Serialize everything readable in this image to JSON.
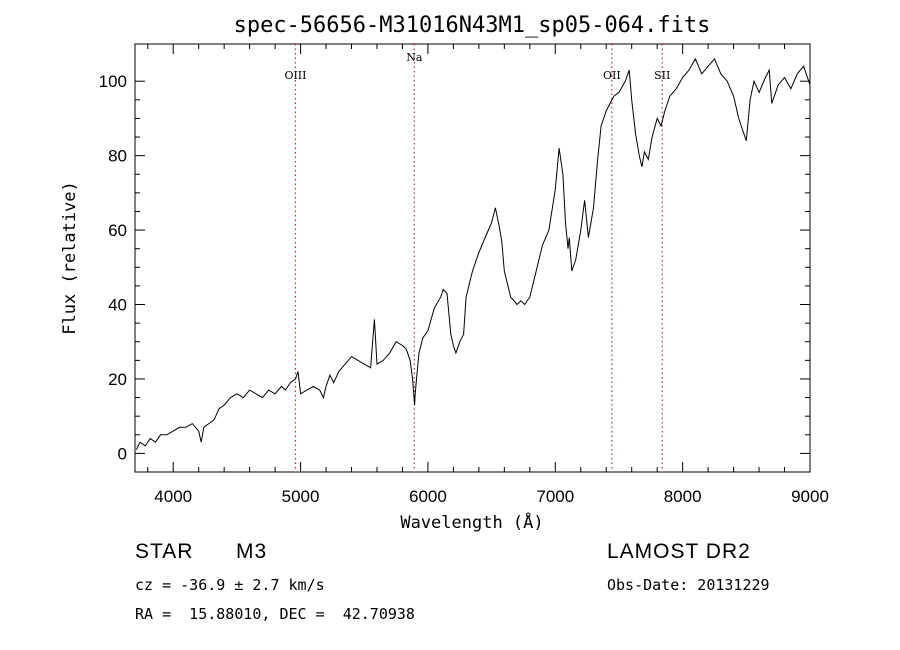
{
  "chart_data": {
    "type": "line",
    "title": "spec-56656-M31016N43M1_sp05-064.fits",
    "xlabel": "Wavelength (Å)",
    "ylabel": "Flux (relative)",
    "xlim": [
      3700,
      9000
    ],
    "ylim": [
      -5,
      110
    ],
    "xticks": [
      4000,
      5000,
      6000,
      7000,
      8000,
      9000
    ],
    "yticks": [
      0,
      20,
      40,
      60,
      80,
      100
    ],
    "grid": false,
    "line_color": "#000000",
    "marker_color": "#b03030",
    "series": [
      {
        "x": [
          3710,
          3740,
          3780,
          3820,
          3860,
          3900,
          3950,
          4000,
          4050,
          4100,
          4150,
          4200,
          4220,
          4240,
          4280,
          4320,
          4360,
          4400,
          4450,
          4500,
          4550,
          4600,
          4650,
          4700,
          4750,
          4800,
          4850,
          4880,
          4920,
          4960,
          4980,
          5000,
          5050,
          5100,
          5150,
          5180,
          5200,
          5230,
          5260,
          5300,
          5350,
          5400,
          5450,
          5500,
          5550,
          5580,
          5600,
          5650,
          5700,
          5750,
          5800,
          5830,
          5860,
          5880,
          5895,
          5900,
          5910,
          5930,
          5960,
          6000,
          6050,
          6100,
          6120,
          6150,
          6180,
          6200,
          6220,
          6250,
          6280,
          6300,
          6350,
          6400,
          6450,
          6500,
          6530,
          6560,
          6580,
          6600,
          6650,
          6700,
          6730,
          6760,
          6800,
          6850,
          6900,
          6950,
          7000,
          7030,
          7060,
          7080,
          7100,
          7110,
          7130,
          7160,
          7200,
          7230,
          7260,
          7300,
          7330,
          7360,
          7400,
          7430,
          7460,
          7500,
          7550,
          7580,
          7600,
          7630,
          7660,
          7680,
          7700,
          7730,
          7760,
          7800,
          7830,
          7860,
          7900,
          7950,
          8000,
          8050,
          8100,
          8150,
          8200,
          8250,
          8300,
          8350,
          8400,
          8440,
          8470,
          8500,
          8530,
          8560,
          8600,
          8650,
          8680,
          8700,
          8750,
          8800,
          8850,
          8900,
          8950,
          9000
        ],
        "y": [
          1,
          3,
          2,
          4,
          3,
          5,
          5,
          6,
          7,
          7,
          8,
          6,
          3,
          7,
          8,
          9,
          12,
          13,
          15,
          16,
          15,
          17,
          16,
          15,
          17,
          16,
          18,
          17,
          19,
          20,
          22,
          16,
          17,
          18,
          17,
          15,
          18,
          21,
          19,
          22,
          24,
          26,
          25,
          24,
          23,
          36,
          24,
          25,
          27,
          30,
          29,
          28,
          25,
          20,
          13,
          16,
          20,
          27,
          31,
          33,
          39,
          42,
          44,
          43,
          32,
          29,
          27,
          30,
          32,
          42,
          49,
          54,
          58,
          62,
          66,
          61,
          57,
          49,
          42,
          40,
          41,
          40,
          42,
          49,
          56,
          60,
          71,
          82,
          75,
          62,
          55,
          58,
          49,
          52,
          60,
          68,
          58,
          66,
          78,
          88,
          92,
          94,
          96,
          97,
          100,
          103,
          95,
          86,
          80,
          77,
          81,
          79,
          85,
          90,
          88,
          92,
          96,
          98,
          101,
          103,
          106,
          102,
          104,
          106,
          102,
          100,
          96,
          90,
          87,
          84,
          95,
          100,
          97,
          101,
          103,
          94,
          99,
          101,
          98,
          102,
          104,
          99
        ]
      }
    ],
    "lines": [
      {
        "label": "OIII",
        "x": 4960
      },
      {
        "label": "Na",
        "x": 5893
      },
      {
        "label": "OII",
        "x": 7444
      },
      {
        "label": "SII",
        "x": 7840
      }
    ]
  },
  "info": {
    "object_class": "STAR",
    "subclass": "M3",
    "cz": "cz = -36.9 ± 2.7 km/s",
    "coords": "RA =  15.88010, DEC =  42.70938",
    "survey": "LAMOST DR2",
    "obs_date": "Obs-Date: 20131229"
  }
}
